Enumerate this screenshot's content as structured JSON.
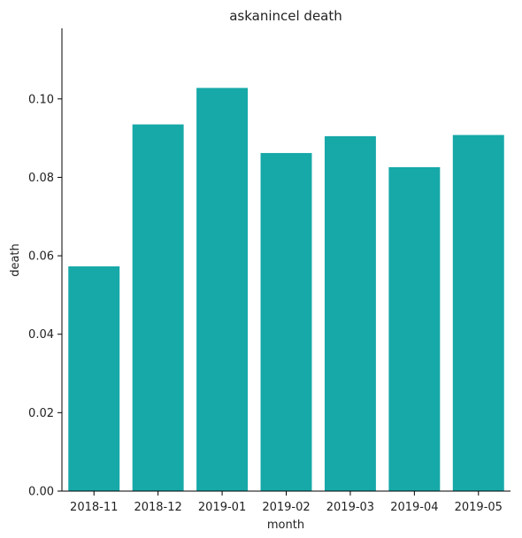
{
  "chart_data": {
    "type": "bar",
    "title": "askanincel death",
    "xlabel": "month",
    "ylabel": "death",
    "categories": [
      "2018-11",
      "2018-12",
      "2019-01",
      "2019-02",
      "2019-03",
      "2019-04",
      "2019-05"
    ],
    "values": [
      0.0573,
      0.0935,
      0.1028,
      0.0862,
      0.0905,
      0.0826,
      0.0908
    ],
    "ylim": [
      0,
      0.118
    ],
    "yticks": [
      0.0,
      0.02,
      0.04,
      0.06,
      0.08,
      0.1
    ],
    "ytick_labels": [
      "0.00",
      "0.02",
      "0.04",
      "0.06",
      "0.08",
      "0.10"
    ],
    "grid": false,
    "bar_color": "#17a8a8"
  }
}
